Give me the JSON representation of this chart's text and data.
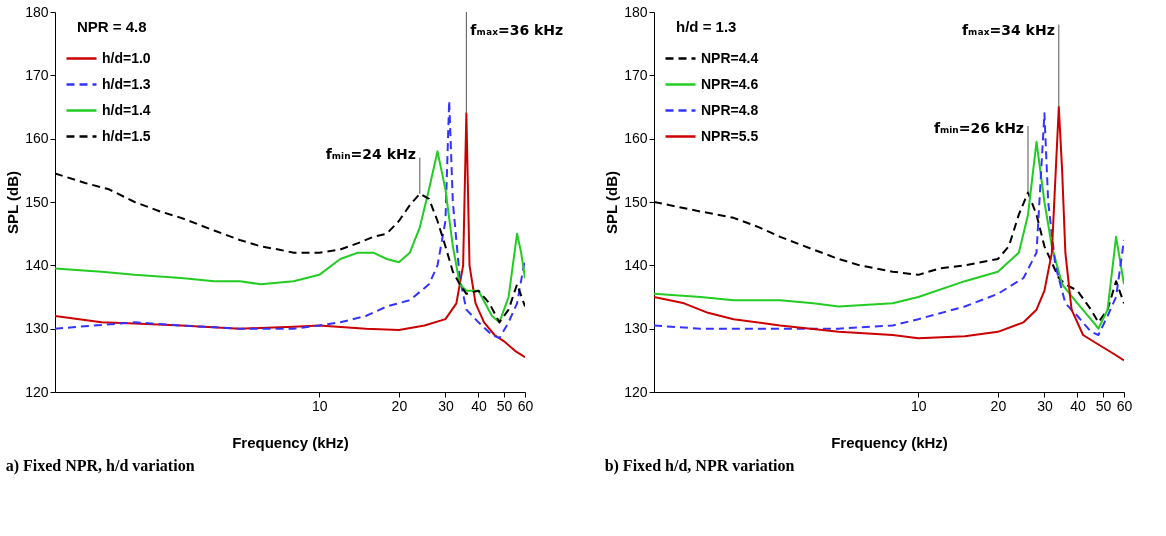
{
  "chart_data": [
    {
      "type": "line",
      "title": "a) Fixed NPR, h/d variation",
      "xlabel": "Frequency (kHz)",
      "ylabel": "SPL (dB)",
      "log": "x",
      "legend": "top left",
      "grid": false,
      "xlim": [
        1,
        60
      ],
      "xticks": [
        10,
        20,
        30,
        40,
        50,
        60
      ],
      "ylim": [
        120,
        180
      ],
      "yticks": [
        120,
        130,
        140,
        150,
        160,
        170,
        180
      ],
      "annotations": [
        "NPR = 4.8",
        {
          "text": "fₘᵢₙ=24 kHz",
          "x": 24,
          "y": 151.3
        },
        {
          "text": "fₘₐₓ=36 kHz",
          "x": 36,
          "y": 164
        }
      ],
      "series": [
        {
          "name": "h/d=1.0",
          "color": "#cc0000",
          "line_style": "solid",
          "x": [
            1,
            1.5,
            2,
            3,
            5,
            8,
            10,
            15,
            20,
            25,
            30,
            33,
            35,
            36,
            37,
            39,
            42,
            46,
            50,
            55,
            60
          ],
          "values": [
            132,
            131,
            130.8,
            130.5,
            130,
            130.3,
            130.5,
            130,
            129.8,
            130.5,
            131.5,
            134,
            140,
            164,
            140,
            134,
            131,
            129,
            128,
            126.5,
            125.5
          ]
        },
        {
          "name": "h/d=1.3",
          "color": "#3333ff",
          "line_style": "dashed",
          "x": [
            1,
            2,
            3,
            5,
            8,
            10,
            12,
            15,
            18,
            22,
            26,
            28,
            30,
            31,
            32,
            34,
            36,
            40,
            45,
            48,
            52,
            56,
            60
          ],
          "values": [
            130,
            131,
            130.5,
            130,
            130,
            130.5,
            131,
            132,
            133.5,
            134.5,
            137,
            140,
            147,
            166,
            150,
            138,
            133,
            131,
            129,
            128.5,
            131,
            134,
            141
          ]
        },
        {
          "name": "h/d=1.4",
          "color": "#22cc22",
          "line_style": "solid",
          "x": [
            1,
            1.5,
            2,
            3,
            4,
            5,
            6,
            8,
            10,
            12,
            14,
            16,
            18,
            20,
            22,
            24,
            26,
            28,
            30,
            32,
            34,
            36,
            40,
            45,
            48,
            52,
            56,
            58,
            60
          ],
          "values": [
            139.5,
            139,
            138.5,
            138,
            137.5,
            137.5,
            137,
            137.5,
            138.5,
            141,
            142,
            142,
            141,
            140.5,
            142,
            146,
            152,
            158,
            152,
            143,
            137,
            136,
            136,
            132,
            131,
            135,
            145,
            142,
            138
          ]
        },
        {
          "name": "h/d=1.5",
          "color": "#000000",
          "line_style": "dashed",
          "x": [
            1,
            1.3,
            1.6,
            2,
            2.5,
            3,
            4,
            5,
            6,
            7,
            8,
            10,
            12,
            14,
            16,
            18,
            20,
            22,
            24,
            26,
            28,
            30,
            32,
            34,
            36,
            40,
            44,
            48,
            52,
            56,
            60
          ],
          "values": [
            154.5,
            153,
            152,
            150,
            148.5,
            147.5,
            145.5,
            144,
            143,
            142.5,
            142,
            142,
            142.5,
            143.5,
            144.5,
            145,
            147,
            149.5,
            151.3,
            150.5,
            147,
            143,
            139,
            137,
            135.5,
            136,
            134,
            131,
            133,
            137,
            133.5
          ]
        }
      ]
    },
    {
      "type": "line",
      "title": "b) Fixed h/d, NPR variation",
      "xlabel": "Frequency (kHz)",
      "ylabel": "SPL (dB)",
      "log": "x",
      "legend": "top left",
      "grid": false,
      "xlim": [
        1,
        60
      ],
      "xticks": [
        10,
        20,
        30,
        40,
        50,
        60
      ],
      "ylim": [
        120,
        180
      ],
      "yticks": [
        120,
        130,
        140,
        150,
        160,
        170,
        180
      ],
      "annotations": [
        "h/d = 1.3",
        {
          "text": "fₘᵢₙ=26 kHz",
          "x": 26,
          "y": 151.5
        },
        {
          "text": "fₘₐₓ=34 kHz",
          "x": 34,
          "y": 165
        }
      ],
      "series": [
        {
          "name": "NPR=4.4",
          "color": "#000000",
          "line_style": "dashed",
          "x": [
            1,
            1.5,
            2,
            2.5,
            3,
            4,
            5,
            6,
            8,
            10,
            12,
            15,
            20,
            22,
            24,
            26,
            28,
            30,
            34,
            36,
            40,
            45,
            48,
            52,
            56,
            60
          ],
          "values": [
            150,
            148.5,
            147.5,
            146,
            144.5,
            142.5,
            141,
            140,
            139,
            138.5,
            139.5,
            140,
            141,
            143,
            148,
            151.5,
            148,
            143,
            138,
            137,
            136,
            133,
            131,
            133,
            137.5,
            134
          ]
        },
        {
          "name": "NPR=4.6",
          "color": "#22cc22",
          "line_style": "solid",
          "x": [
            1,
            1.5,
            2,
            3,
            4,
            5,
            8,
            10,
            15,
            20,
            24,
            26,
            28,
            30,
            32,
            35,
            40,
            46,
            48,
            52,
            56,
            60
          ],
          "values": [
            135.5,
            135,
            134.5,
            134.5,
            134,
            133.5,
            134,
            135,
            137.5,
            139,
            142,
            148,
            159.5,
            150,
            143,
            137,
            134,
            131,
            130,
            133,
            144.5,
            137
          ]
        },
        {
          "name": "NPR=4.8",
          "color": "#3333ff",
          "line_style": "dashed",
          "x": [
            1,
            1.5,
            2,
            3,
            5,
            8,
            10,
            15,
            20,
            25,
            28,
            30,
            31,
            33,
            36,
            40,
            45,
            48,
            52,
            56,
            60
          ],
          "values": [
            130.5,
            130,
            130,
            130,
            130,
            130.5,
            131.5,
            133.5,
            135.5,
            138,
            142,
            164,
            150,
            140,
            134,
            132,
            129.5,
            129,
            132,
            135,
            144
          ]
        },
        {
          "name": "NPR=5.5",
          "color": "#cc0000",
          "line_style": "solid",
          "x": [
            1,
            1.3,
            1.6,
            2,
            3,
            5,
            8,
            10,
            15,
            20,
            25,
            28,
            30,
            32,
            34,
            35,
            36,
            38,
            42,
            48,
            55,
            60
          ],
          "values": [
            135,
            134,
            132.5,
            131.5,
            130.5,
            129.5,
            129,
            128.5,
            128.8,
            129.5,
            131,
            133,
            136,
            142,
            165,
            155,
            142,
            133,
            129,
            127.5,
            126,
            125
          ]
        }
      ]
    }
  ]
}
